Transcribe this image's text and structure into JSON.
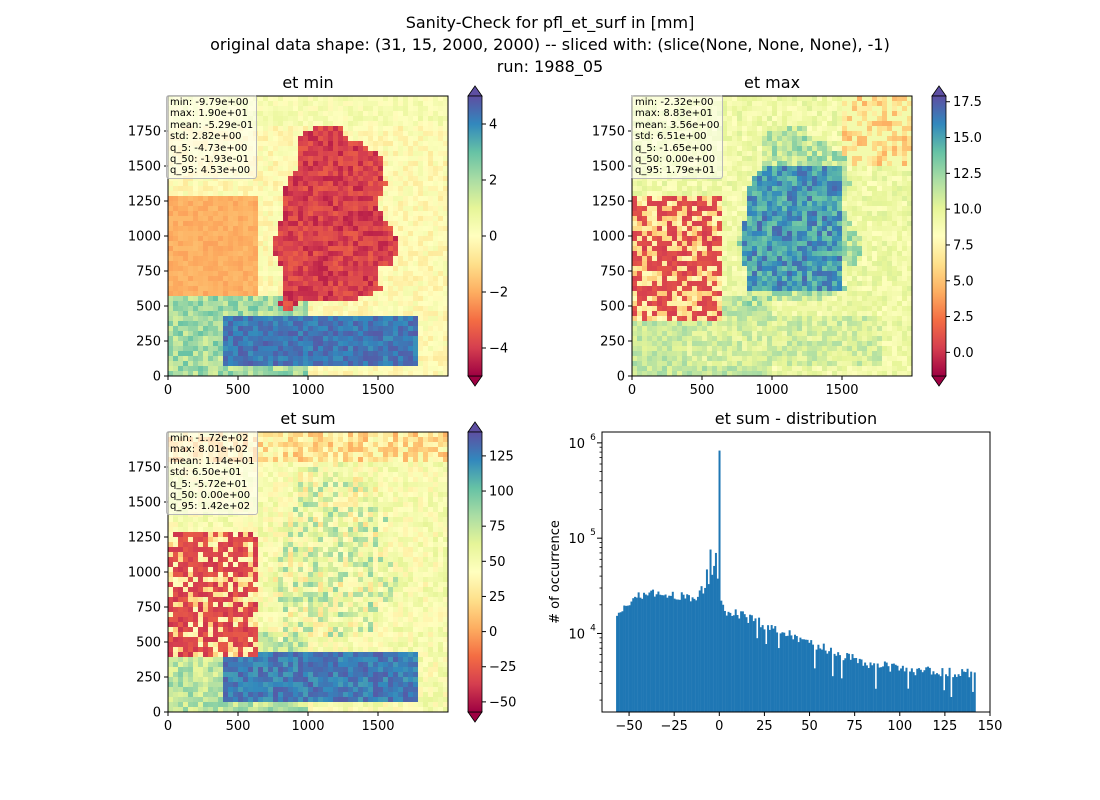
{
  "figure": {
    "suptitle": [
      "Sanity-Check for pfl_et_surf in [mm]",
      "original data shape: (31, 15, 2000, 2000) -- sliced with: (slice(None, None, None), -1)",
      "run: 1988_05"
    ]
  },
  "chart_data": [
    {
      "type": "heatmap",
      "title": "et min",
      "colormap": "Spectral",
      "x_ticks": [
        "0",
        "500",
        "1000",
        "1500"
      ],
      "y_ticks": [
        "0",
        "250",
        "500",
        "750",
        "1000",
        "1250",
        "1500",
        "1750"
      ],
      "xlim": [
        0,
        2000
      ],
      "ylim": [
        0,
        2000
      ],
      "colorbar": {
        "min": -5,
        "max": 5,
        "ticks": [
          "−4",
          "−2",
          "0",
          "2",
          "4"
        ],
        "extend": "both"
      },
      "stats": [
        "min: -9.79e+00",
        "max: 1.90e+01",
        "mean: -5.29e-01",
        "std: 2.82e+00",
        "q_5: -4.73e+00",
        "q_50: -1.93e-01",
        "q_95: 4.53e+00"
      ]
    },
    {
      "type": "heatmap",
      "title": "et max",
      "colormap": "Spectral",
      "x_ticks": [
        "0",
        "500",
        "1000",
        "1500"
      ],
      "y_ticks": [
        "0",
        "250",
        "500",
        "750",
        "1000",
        "1250",
        "1500",
        "1750"
      ],
      "xlim": [
        0,
        2000
      ],
      "ylim": [
        0,
        2000
      ],
      "colorbar": {
        "min": -1.65,
        "max": 17.9,
        "ticks": [
          "0.0",
          "2.5",
          "5.0",
          "7.5",
          "10.0",
          "12.5",
          "15.0",
          "17.5"
        ],
        "extend": "both"
      },
      "stats": [
        "min: -2.32e+00",
        "max: 8.83e+01",
        "mean: 3.56e+00",
        "std: 6.51e+00",
        "q_5: -1.65e+00",
        "q_50: 0.00e+00",
        "q_95: 1.79e+01"
      ]
    },
    {
      "type": "heatmap",
      "title": "et sum",
      "colormap": "Spectral",
      "x_ticks": [
        "0",
        "500",
        "1000",
        "1500"
      ],
      "y_ticks": [
        "0",
        "250",
        "500",
        "750",
        "1000",
        "1250",
        "1500",
        "1750"
      ],
      "xlim": [
        0,
        2000
      ],
      "ylim": [
        0,
        2000
      ],
      "colorbar": {
        "min": -57.2,
        "max": 142,
        "ticks": [
          "−50",
          "−25",
          "0",
          "25",
          "50",
          "75",
          "100",
          "125"
        ],
        "extend": "both"
      },
      "stats": [
        "min: -1.72e+02",
        "max: 8.01e+02",
        "mean: 1.14e+01",
        "std: 6.50e+01",
        "q_5: -5.72e+01",
        "q_50: 0.00e+00",
        "q_95: 1.42e+02"
      ]
    },
    {
      "type": "bar",
      "title": "et sum - distribution",
      "ylabel": "# of occurrence",
      "xlabel": "",
      "yscale": "log",
      "color": "#1f77b4",
      "xlim": [
        -65,
        150
      ],
      "ylim": [
        1500,
        1300000
      ],
      "x_ticks": [
        "−50",
        "−25",
        "0",
        "25",
        "50",
        "75",
        "100",
        "125",
        "150"
      ],
      "y_ticks": [
        "10^4",
        "10^5",
        "10^6"
      ],
      "bins": {
        "start": -57.2,
        "end": 142,
        "count": 200
      },
      "envelope": [
        [
          -57,
          13500
        ],
        [
          -55,
          15500
        ],
        [
          -53,
          17500
        ],
        [
          -50,
          20500
        ],
        [
          -47,
          23000
        ],
        [
          -44,
          25000
        ],
        [
          -40,
          26000
        ],
        [
          -30,
          26000
        ],
        [
          -22,
          25000
        ],
        [
          -18,
          24000
        ],
        [
          -15,
          23000
        ],
        [
          -12,
          25000
        ],
        [
          -10,
          28000
        ],
        [
          -8,
          31000
        ],
        [
          -6,
          36000
        ],
        [
          -4,
          45000
        ],
        [
          -3,
          52000
        ],
        [
          -2,
          65000
        ],
        [
          -1,
          40000
        ],
        [
          0,
          33000
        ],
        [
          1,
          25000
        ],
        [
          2,
          19000
        ],
        [
          4,
          17000
        ],
        [
          6,
          17000
        ],
        [
          10,
          16500
        ],
        [
          15,
          14500
        ],
        [
          20,
          13500
        ],
        [
          25,
          12500
        ],
        [
          30,
          11500
        ],
        [
          35,
          10500
        ],
        [
          40,
          9500
        ],
        [
          45,
          8800
        ],
        [
          50,
          8000
        ],
        [
          55,
          7300
        ],
        [
          60,
          6900
        ],
        [
          65,
          6400
        ],
        [
          70,
          5800
        ],
        [
          75,
          5400
        ],
        [
          80,
          5000
        ],
        [
          90,
          4600
        ],
        [
          100,
          4300
        ],
        [
          110,
          4100
        ],
        [
          120,
          4000
        ],
        [
          130,
          3900
        ],
        [
          141,
          3800
        ]
      ],
      "spikes": [
        {
          "x": 0,
          "y": 830000
        },
        {
          "x": -7,
          "y": 47000
        },
        {
          "x": -5,
          "y": 76000
        },
        {
          "x": -2,
          "y": 70000
        }
      ]
    }
  ]
}
